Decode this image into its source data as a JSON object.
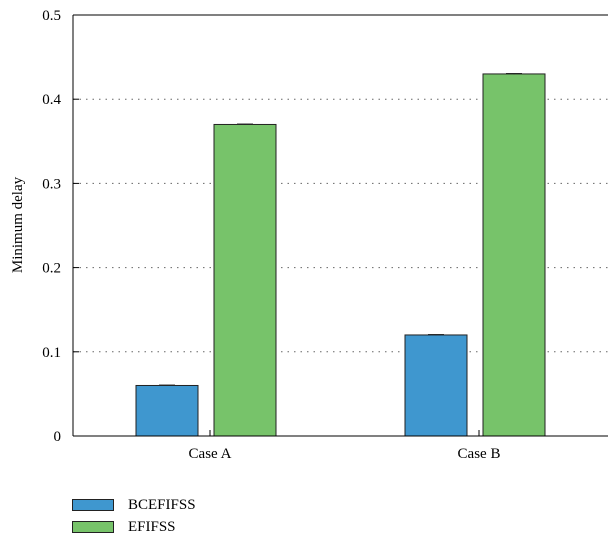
{
  "chart_data": {
    "type": "bar",
    "categories": [
      "Case A",
      "Case B"
    ],
    "series": [
      {
        "name": "BCEFIFSS",
        "values": [
          0.06,
          0.12
        ],
        "error": [
          0.0005,
          0.0005
        ]
      },
      {
        "name": "EFIFSS",
        "values": [
          0.37,
          0.43
        ],
        "error": [
          0.0005,
          0.0005
        ]
      }
    ],
    "title": "",
    "xlabel": "",
    "ylabel": "Minimum delay",
    "ylim": [
      0,
      0.5
    ],
    "yticks": [
      0,
      0.1,
      0.2,
      0.3,
      0.4,
      0.5
    ],
    "ytick_labels": [
      "0",
      "0.1",
      "0.2",
      "0.3",
      "0.4",
      "0.5"
    ],
    "grid": "horizontal-dotted",
    "legend_position": "bottom-left"
  },
  "colors": {
    "BCEFIFSS": "#3f97cf",
    "EFIFSS": "#77c36a"
  }
}
